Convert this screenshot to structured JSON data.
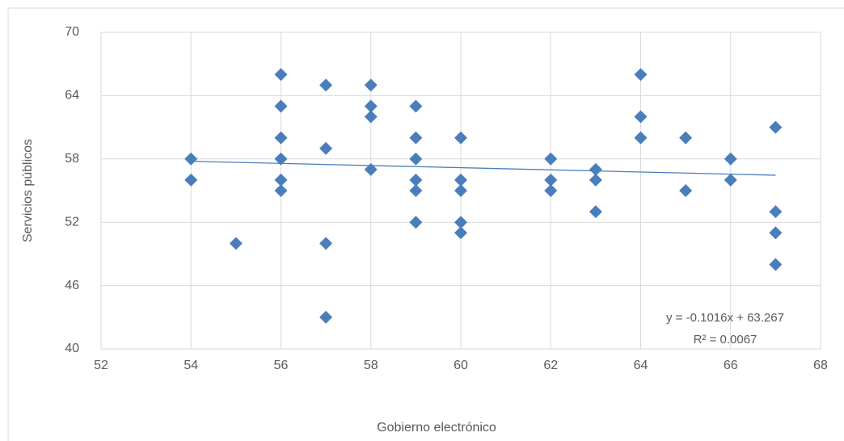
{
  "chart_data": {
    "type": "scatter",
    "x_label": "Gobierno electrónico",
    "y_label": "Servicios públicos",
    "x": [
      54,
      54,
      55,
      56,
      56,
      56,
      56,
      56,
      56,
      57,
      57,
      57,
      57,
      58,
      58,
      58,
      58,
      59,
      59,
      59,
      59,
      59,
      59,
      60,
      60,
      60,
      60,
      60,
      62,
      62,
      62,
      63,
      63,
      63,
      64,
      64,
      64,
      65,
      65,
      66,
      66,
      67,
      67,
      67,
      67
    ],
    "values": [
      58,
      56,
      50,
      66,
      63,
      60,
      58,
      56,
      55,
      65,
      59,
      50,
      43,
      65,
      63,
      62,
      57,
      63,
      60,
      58,
      56,
      55,
      52,
      60,
      56,
      55,
      52,
      51,
      58,
      56,
      55,
      57,
      56,
      53,
      66,
      62,
      60,
      60,
      55,
      58,
      56,
      61,
      53,
      51,
      48
    ],
    "color": "#4a7ebb",
    "xlim": [
      52,
      68
    ],
    "xticks": [
      52,
      54,
      56,
      58,
      60,
      62,
      64,
      66,
      68
    ],
    "ylim": [
      40,
      70
    ],
    "yticks": [
      40,
      46,
      52,
      58,
      64,
      70
    ],
    "grid": true,
    "trendline": {
      "equation": "y = -0.1016x + 63.267",
      "r2": "R² = 0.0067",
      "color": "#4a7ebb"
    }
  }
}
